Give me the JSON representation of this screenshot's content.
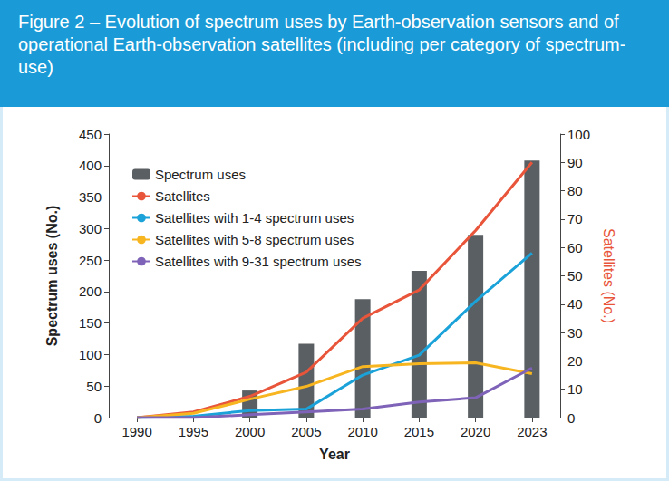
{
  "chart_data": {
    "type": "bar",
    "title": "Figure 2 – Evolution of spectrum uses by Earth-observation sensors and of operational Earth-observation satellites (including per category of spectrum-use)",
    "x_label": "Year",
    "y_label": "Spectrum uses (No.)",
    "y2_label": "Satellites (No.)",
    "categories": [
      "1990",
      "1995",
      "2000",
      "2005",
      "2010",
      "2015",
      "2020",
      "2023"
    ],
    "series": [
      {
        "name": "Spectrum uses",
        "type": "bar",
        "color": "#5a5f63",
        "values": [
          0,
          3,
          43,
          117,
          188,
          233,
          290,
          408
        ]
      },
      {
        "name": "Satellites",
        "type": "line",
        "axis": "y2",
        "color": "#e8553a",
        "values": [
          0,
          2,
          7.5,
          16,
          35,
          45,
          66,
          90
        ]
      },
      {
        "name": "Satellites with 1-4 spectrum uses",
        "type": "line",
        "axis": "y2",
        "color": "#1ba3d9",
        "values": [
          0,
          0.5,
          2.5,
          3,
          15,
          22,
          41,
          58
        ]
      },
      {
        "name": "Satellites with 5-8 spectrum uses",
        "type": "line",
        "axis": "y2",
        "color": "#f7b520",
        "values": [
          0,
          1.5,
          6.5,
          11,
          18,
          19,
          19.3,
          15.5
        ]
      },
      {
        "name": "Satellites with 9-31 spectrum uses",
        "type": "line",
        "axis": "y2",
        "color": "#7e63b8",
        "values": [
          0,
          0,
          1,
          2,
          3,
          5.5,
          7,
          17.5
        ]
      }
    ],
    "ylim": [
      0,
      450
    ],
    "yticks": [
      0,
      50,
      100,
      150,
      200,
      250,
      300,
      350,
      400,
      450
    ],
    "y2lim": [
      0,
      100
    ],
    "y2ticks": [
      0,
      10,
      20,
      30,
      40,
      50,
      60,
      70,
      80,
      90,
      100
    ],
    "legend": "upper left",
    "grid": false
  }
}
